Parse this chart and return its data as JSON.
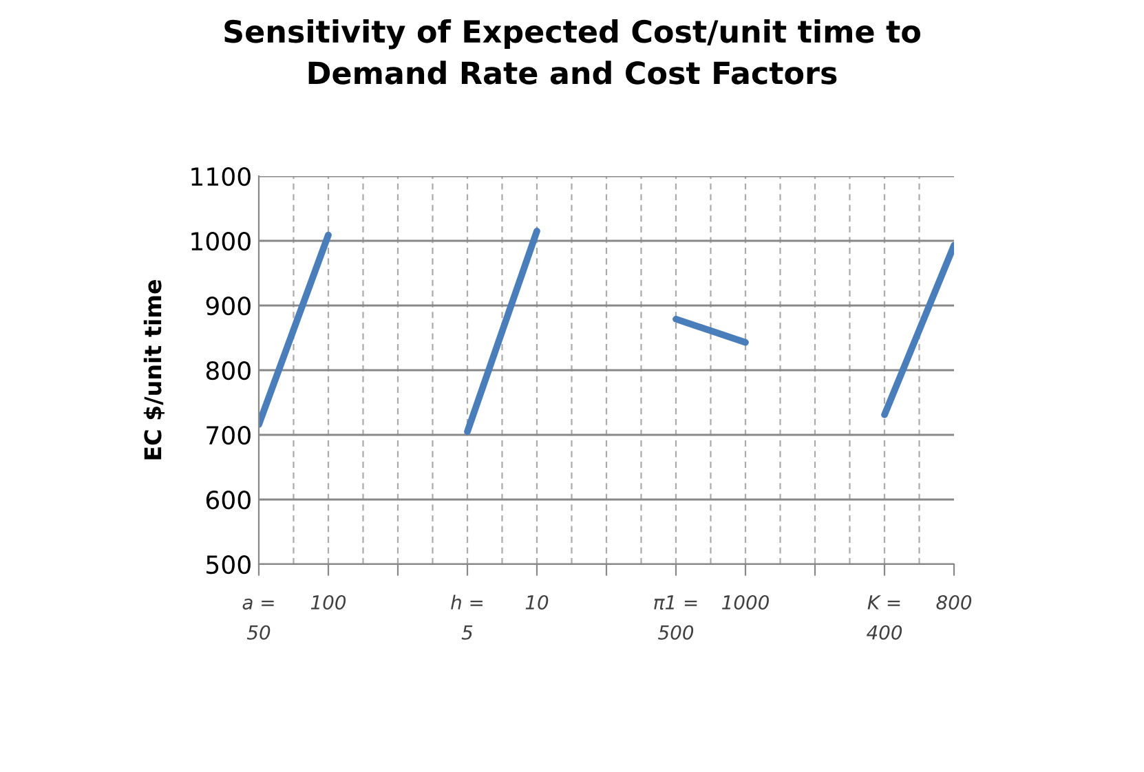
{
  "chart_data": {
    "type": "line",
    "title": "Sensitivity of Expected Cost/unit time to\nDemand Rate and Cost Factors",
    "ylabel": "EC $/unit time",
    "categories": [
      "a = 50",
      "100",
      null,
      "h = 5",
      "10",
      null,
      "π1 = 500",
      "1000",
      null,
      "K = 400",
      "800"
    ],
    "series": [
      {
        "color": "#4a7ebb",
        "values": [
          716,
          1009,
          null,
          705,
          1015,
          null,
          879,
          843,
          null,
          731,
          993
        ]
      }
    ],
    "ylim": [
      500,
      1100
    ],
    "yticks": [
      500,
      600,
      700,
      800,
      900,
      1000,
      1100
    ],
    "grid": true,
    "marker": "none",
    "line_style": "solid",
    "legend": false
  }
}
